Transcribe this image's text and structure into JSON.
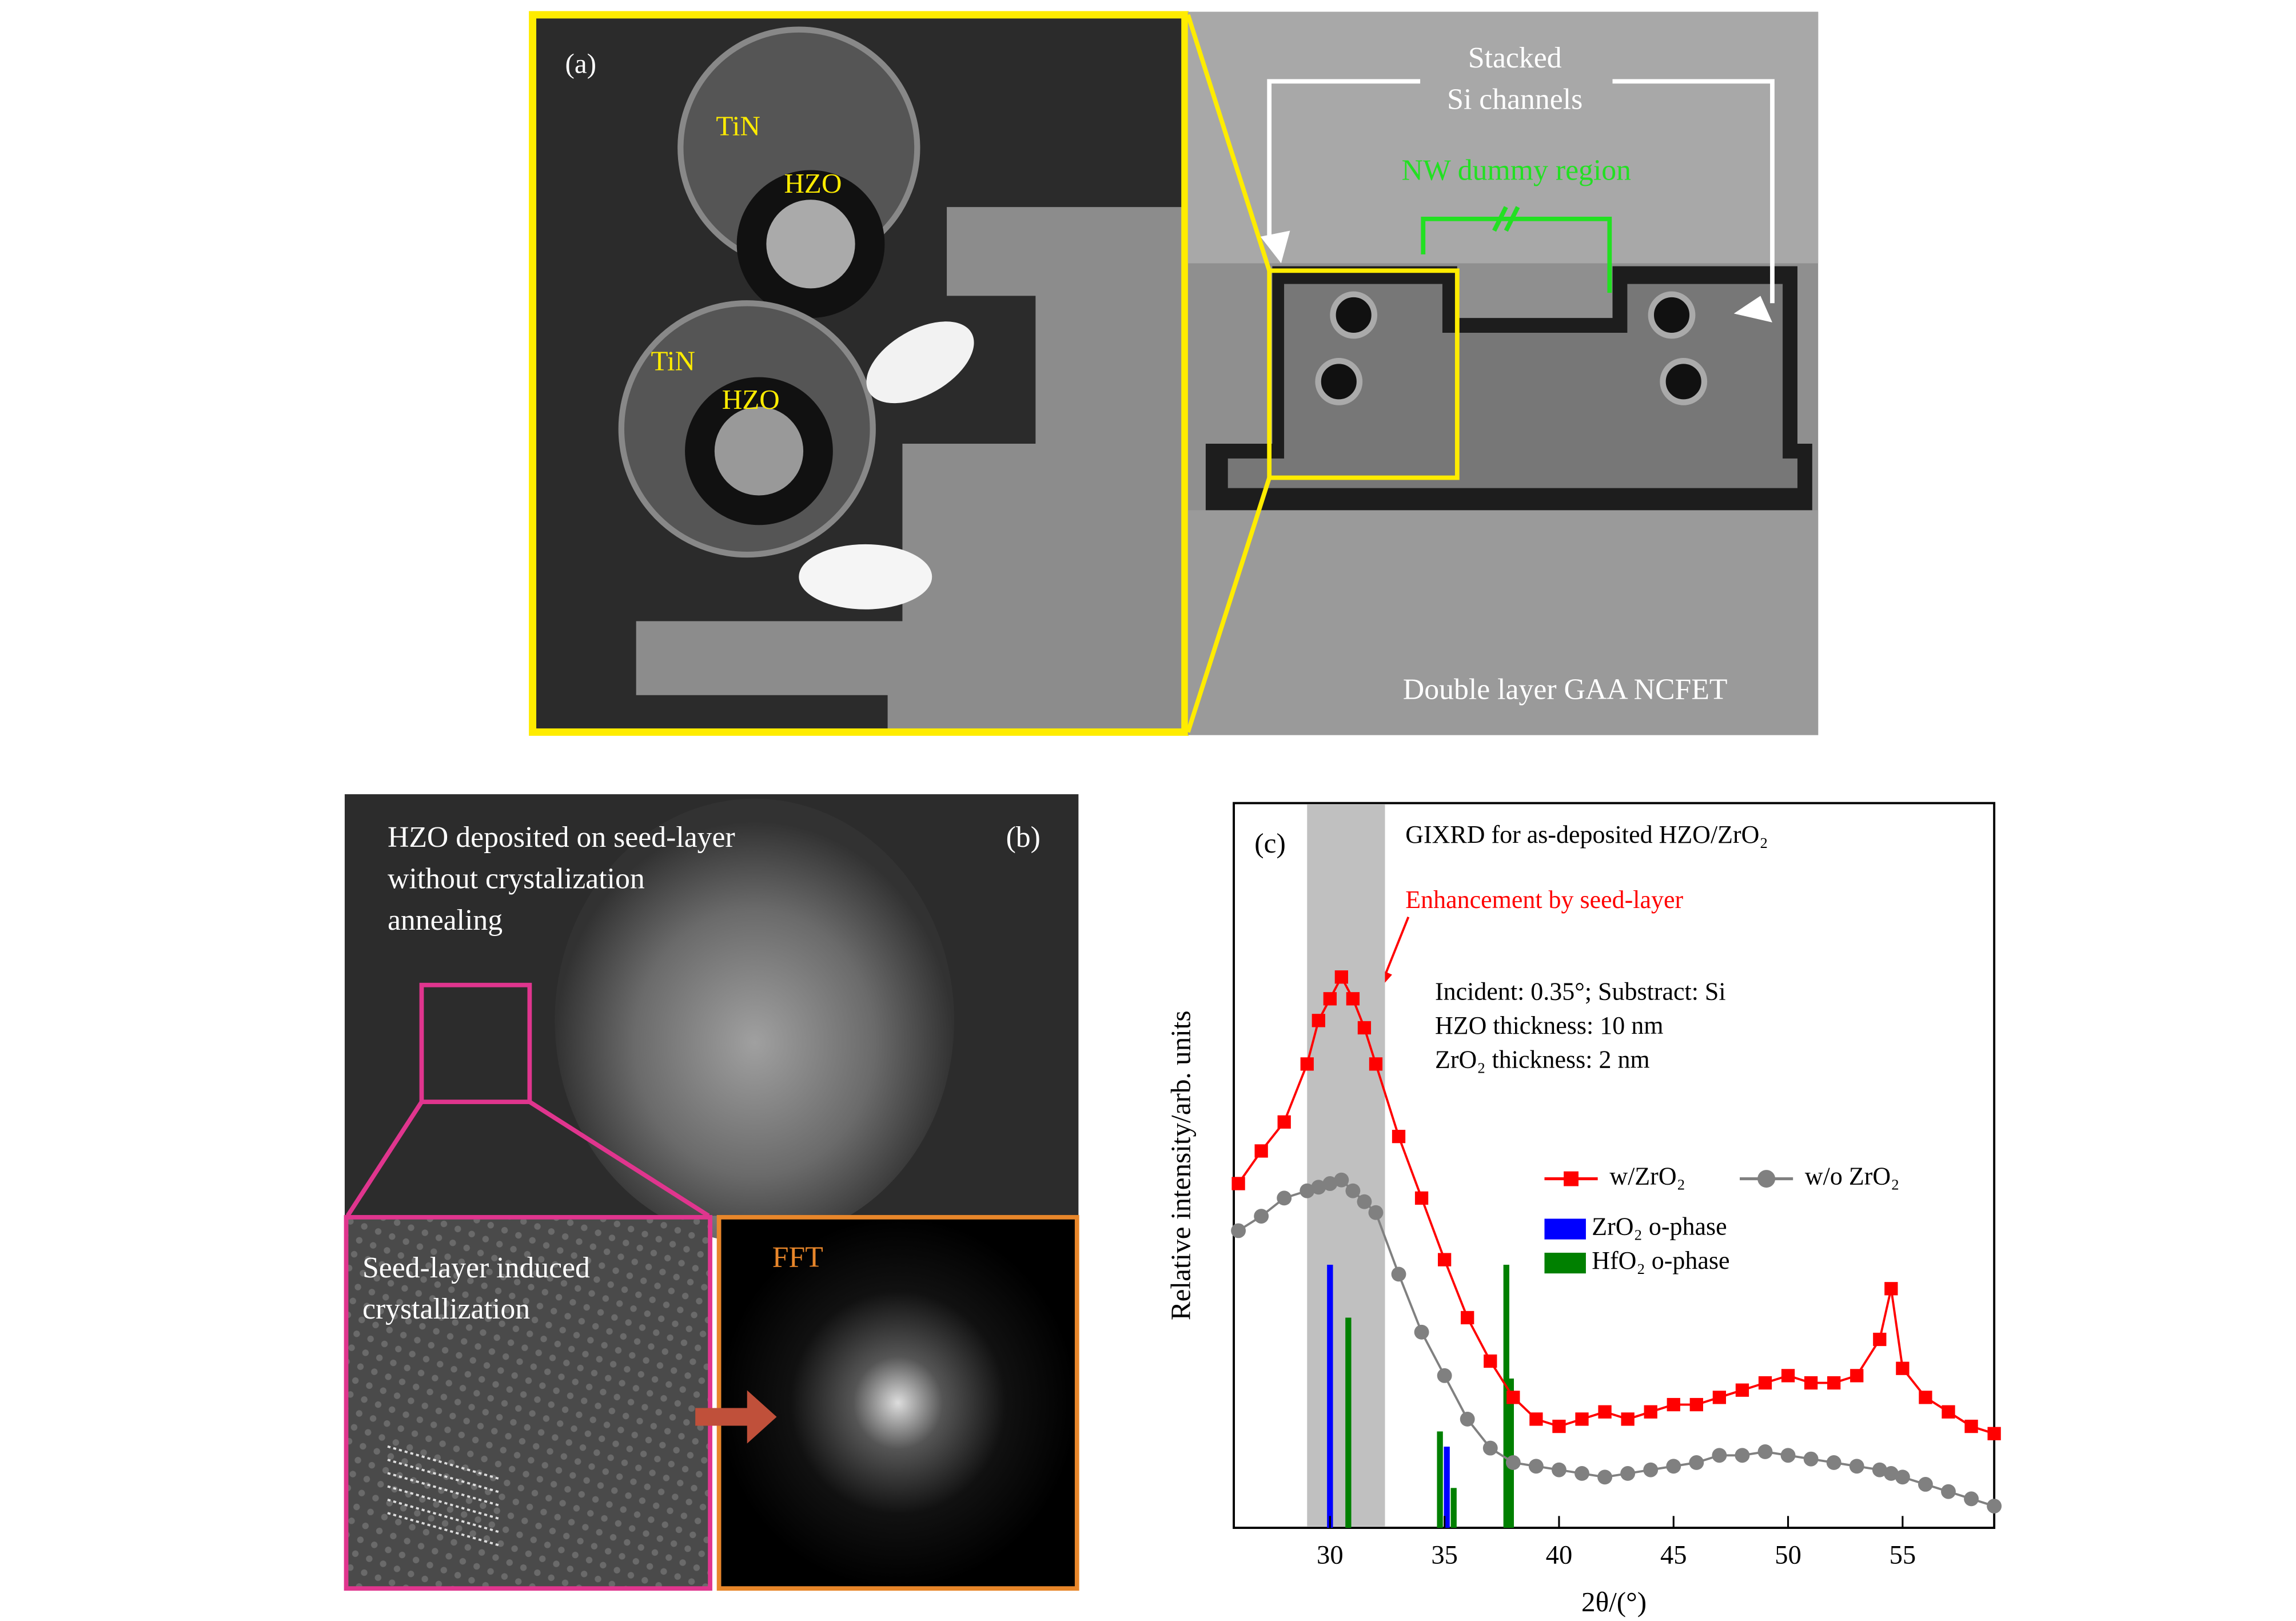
{
  "panel_a": {
    "label": "(a)",
    "labels": [
      "TiN",
      "HZO",
      "TiN",
      "HZO"
    ],
    "annotation_lines": [
      "Stacked",
      "Si channels"
    ],
    "region_label": "NW dummy region",
    "caption": "Double layer GAA NCFET"
  },
  "panel_b": {
    "label": "(b)",
    "top_lines": [
      "HZO deposited on seed-layer",
      "without crystalization",
      "annealing"
    ],
    "inset_lines": [
      "Seed-layer induced",
      "crystallization"
    ],
    "fft_label": "FFT"
  },
  "chart_data": {
    "type": "scatter",
    "label": "(c)",
    "title": "GIXRD for as-deposited HZO/ZrO₂",
    "xlabel": "2θ/(°)",
    "ylabel": "Relative intensity/arb. units",
    "annotation": "Enhancement by seed-layer",
    "info_lines": [
      "Incident: 0.35°; Substract: Si",
      "HZO thickness: 10 nm",
      "ZrO₂ thickness: 2 nm"
    ],
    "highlight_range": [
      29.0,
      32.4
    ],
    "xlim": [
      25.8,
      59
    ],
    "ylim": [
      0,
      100
    ],
    "xticks": [
      30,
      35,
      40,
      45,
      50,
      55
    ],
    "x": [
      26,
      27,
      28,
      29,
      29.5,
      30,
      30.5,
      31,
      31.5,
      32,
      33,
      34,
      35,
      36,
      37,
      38,
      39,
      40,
      41,
      42,
      43,
      44,
      45,
      46,
      47,
      48,
      49,
      50,
      51,
      52,
      53,
      54,
      54.5,
      55,
      56,
      57,
      58,
      59
    ],
    "series": [
      {
        "name": "w/ZrO₂",
        "color": "#ff0000",
        "marker": "square",
        "values": [
          47.5,
          52,
          56,
          64,
          70,
          73,
          76,
          73,
          69,
          64,
          54,
          45.5,
          37,
          29,
          23,
          18,
          15,
          14,
          15,
          16,
          15,
          16,
          17,
          17,
          18,
          19,
          20,
          21,
          20,
          20,
          21,
          26,
          33,
          22,
          18,
          16,
          14,
          13
        ]
      },
      {
        "name": "w/o ZrO₂",
        "color": "#808080",
        "marker": "circle",
        "values": [
          41,
          43,
          45.5,
          46.5,
          47,
          47.5,
          48,
          46.5,
          45,
          43.5,
          35,
          27,
          21,
          15,
          11,
          9,
          8.5,
          8,
          7.5,
          7,
          7.5,
          8,
          8.5,
          9,
          10,
          10,
          10.5,
          10,
          9.5,
          9,
          8.5,
          8,
          7.5,
          7,
          6,
          5,
          4,
          3
        ]
      }
    ],
    "reference_phases": [
      {
        "name": "ZrO₂ o-phase",
        "color": "#0000ff",
        "x": [
          30.0,
          35.1
        ],
        "values": [
          36.3,
          11.2
        ]
      },
      {
        "name": "HfO₂ o-phase",
        "color": "#008000",
        "x": [
          30.8,
          34.8,
          35.4,
          37.7,
          37.9
        ],
        "values": [
          29,
          13.3,
          5.5,
          36.3,
          20.6
        ]
      }
    ]
  }
}
